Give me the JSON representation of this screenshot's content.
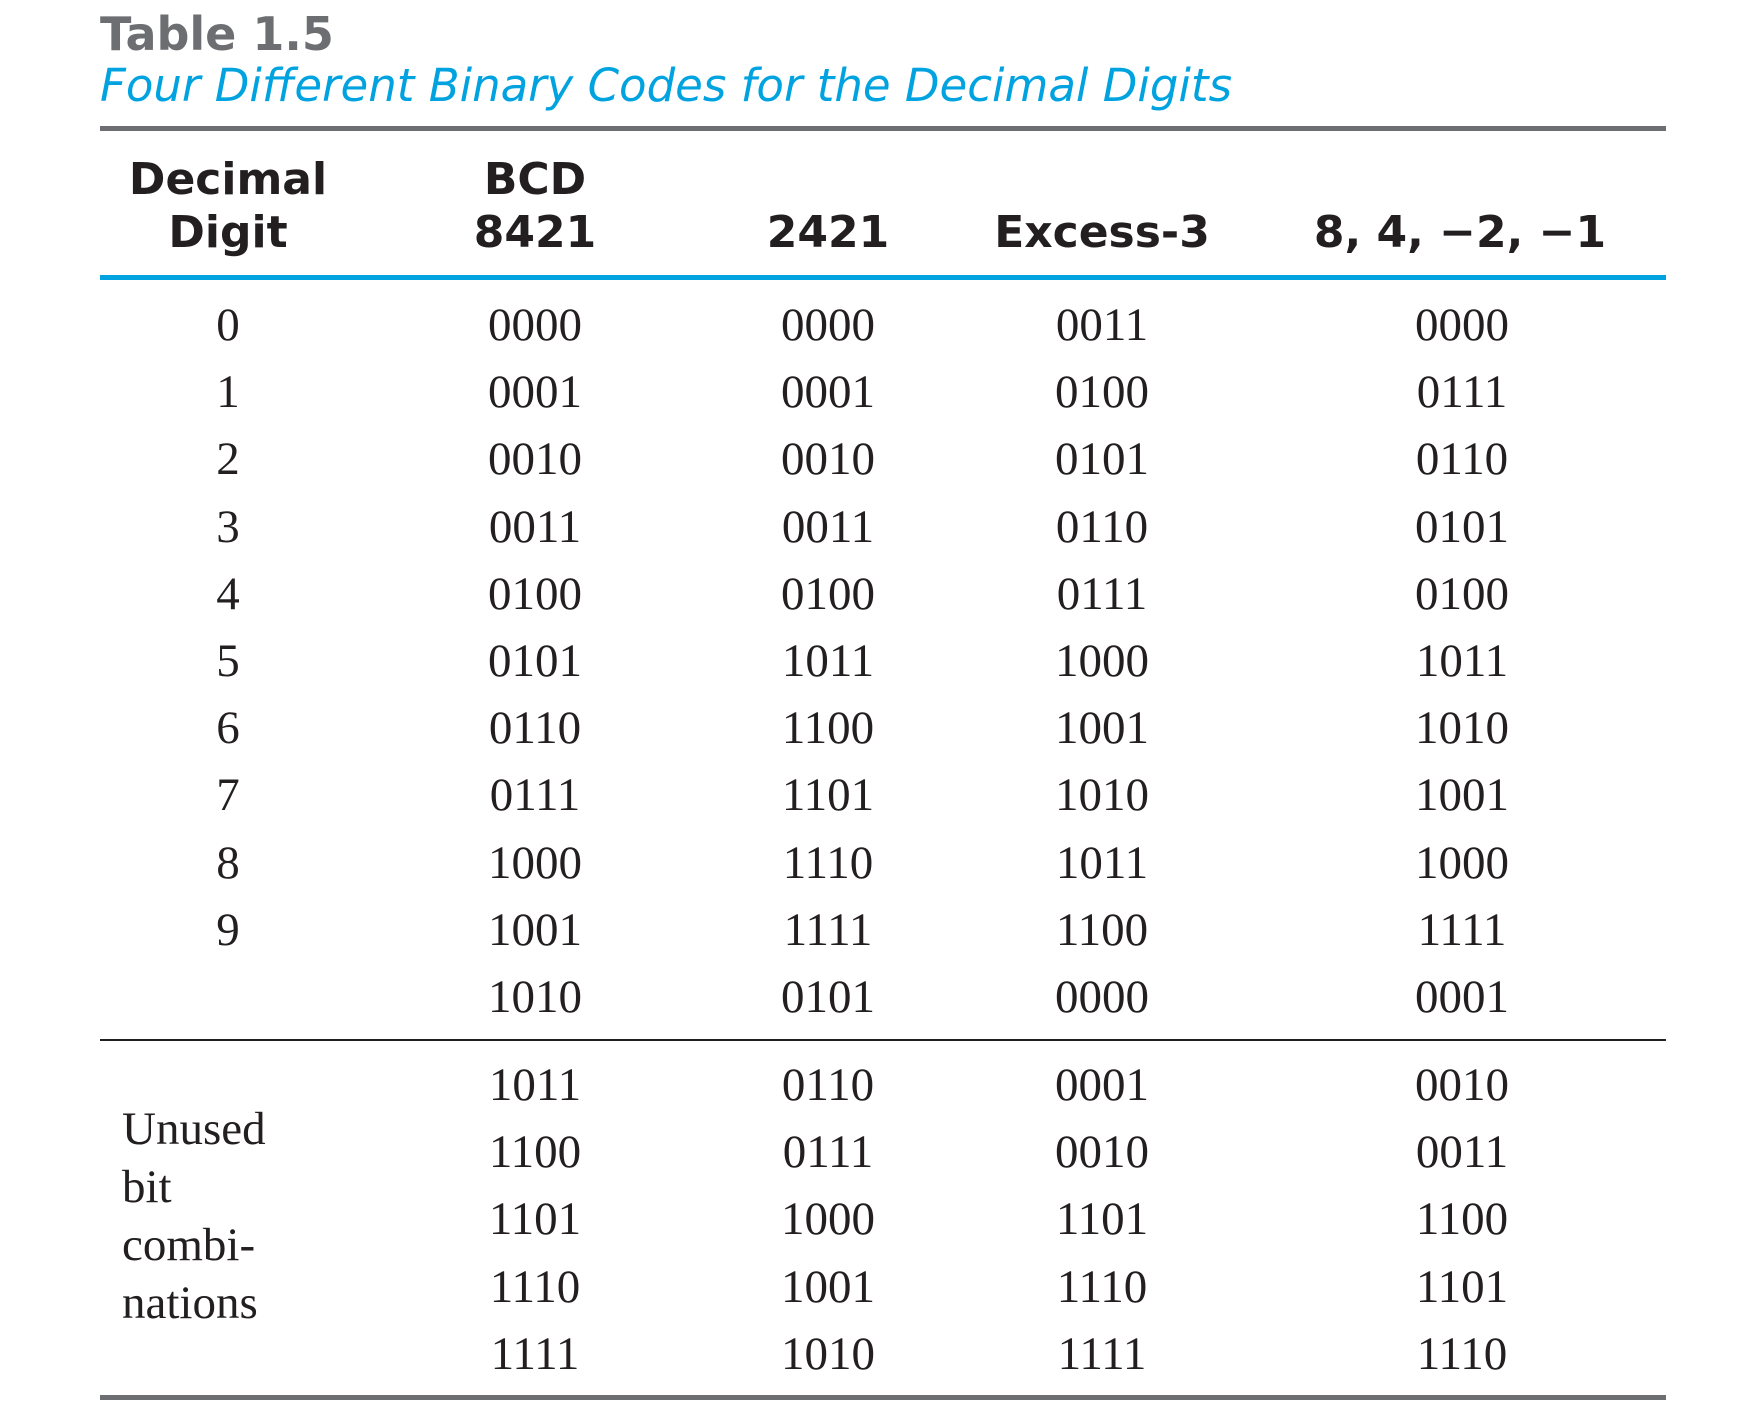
{
  "table": {
    "number": "Table 1.5",
    "caption": "Four Different Binary Codes for the Decimal Digits",
    "headers": [
      {
        "line1": "Decimal",
        "line2": "Digit"
      },
      {
        "line1": "BCD",
        "line2": "8421"
      },
      {
        "line1": "",
        "line2": "2421"
      },
      {
        "line1": "",
        "line2": "Excess-3"
      },
      {
        "line1": "",
        "line2": "8, 4, −2, −1"
      }
    ],
    "rows": [
      [
        "0",
        "0000",
        "0000",
        "0011",
        "0000"
      ],
      [
        "1",
        "0001",
        "0001",
        "0100",
        "0111"
      ],
      [
        "2",
        "0010",
        "0010",
        "0101",
        "0110"
      ],
      [
        "3",
        "0011",
        "0011",
        "0110",
        "0101"
      ],
      [
        "4",
        "0100",
        "0100",
        "0111",
        "0100"
      ],
      [
        "5",
        "0101",
        "1011",
        "1000",
        "1011"
      ],
      [
        "6",
        "0110",
        "1100",
        "1001",
        "1010"
      ],
      [
        "7",
        "0111",
        "1101",
        "1010",
        "1001"
      ],
      [
        "8",
        "1000",
        "1110",
        "1011",
        "1000"
      ],
      [
        "9",
        "1001",
        "1111",
        "1100",
        "1111"
      ],
      [
        "",
        "1010",
        "0101",
        "0000",
        "0001"
      ]
    ],
    "unused_label": [
      "Unused",
      "bit",
      "combi-",
      "nations"
    ],
    "unused_rows": [
      [
        "1011",
        "0110",
        "0001",
        "0010"
      ],
      [
        "1100",
        "0111",
        "0010",
        "0011"
      ],
      [
        "1101",
        "1000",
        "1101",
        "1100"
      ],
      [
        "1110",
        "1001",
        "1110",
        "1101"
      ],
      [
        "1111",
        "1010",
        "1111",
        "1110"
      ]
    ]
  },
  "colors": {
    "caption": "#00a3e0",
    "table_number": "#6d6e71",
    "rule_gray": "#6d6e71",
    "rule_blue": "#00a3e0",
    "text": "#231f20"
  }
}
